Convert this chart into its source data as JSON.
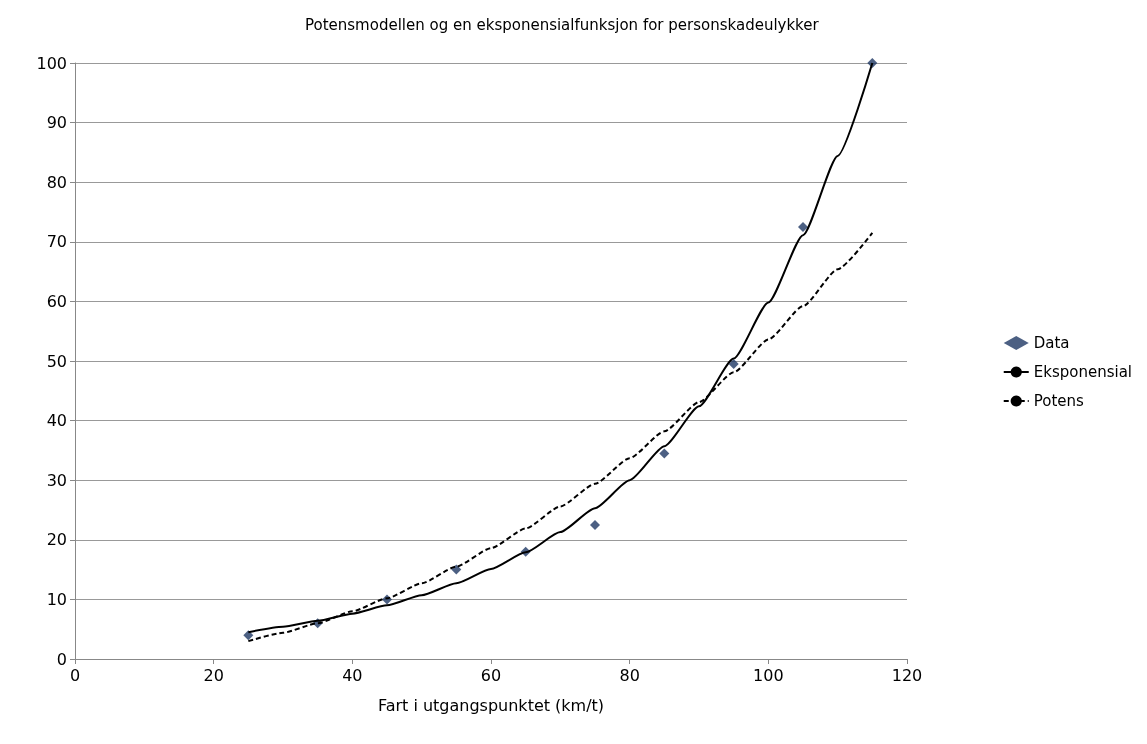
{
  "chart_data": {
    "type": "scatter",
    "title": "Potensmodellen og en eksponensialfunksjon for personskadeulykker",
    "xlabel": "Fart i utgangspunktet (km/t)",
    "xlim": [
      0,
      120
    ],
    "xticks": [
      0,
      20,
      40,
      60,
      80,
      100,
      120
    ],
    "ylim": [
      0,
      100
    ],
    "yticks": [
      0,
      10,
      20,
      30,
      40,
      50,
      60,
      70,
      80,
      90,
      100
    ],
    "grid": "y",
    "legend": "right",
    "series": [
      {
        "name": "Data",
        "marker": "diamond",
        "color": "#1f3864",
        "x": [
          25,
          35,
          45,
          55,
          65,
          75,
          85,
          95,
          105,
          115
        ],
        "values": [
          4,
          6,
          10,
          15,
          18,
          22.5,
          34.5,
          49.5,
          72.5,
          100
        ]
      },
      {
        "name": "Eksponensial",
        "type": "line",
        "line_style": "solid",
        "marker": "none",
        "color": "#000000",
        "x": [
          25,
          30,
          35,
          40,
          45,
          50,
          55,
          60,
          65,
          70,
          75,
          80,
          85,
          90,
          95,
          100,
          105,
          110,
          115
        ],
        "values": [
          4.5,
          5.4,
          6.4,
          7.6,
          9,
          10.7,
          12.7,
          15.1,
          17.9,
          21.3,
          25.3,
          30,
          35.7,
          42.4,
          50.4,
          59.8,
          71.1,
          84.4,
          100
        ]
      },
      {
        "name": "Potens",
        "type": "line",
        "line_style": "dashed",
        "marker": "none",
        "color": "#000000",
        "x": [
          25,
          30,
          35,
          40,
          45,
          50,
          55,
          60,
          65,
          70,
          75,
          80,
          85,
          90,
          95,
          100,
          105,
          110,
          115
        ],
        "values": [
          3,
          4.4,
          6,
          8,
          10.2,
          12.7,
          15.5,
          18.6,
          21.9,
          25.6,
          29.4,
          33.7,
          38.2,
          43.1,
          48.1,
          53.6,
          59.2,
          65.4,
          71.5
        ]
      }
    ]
  }
}
